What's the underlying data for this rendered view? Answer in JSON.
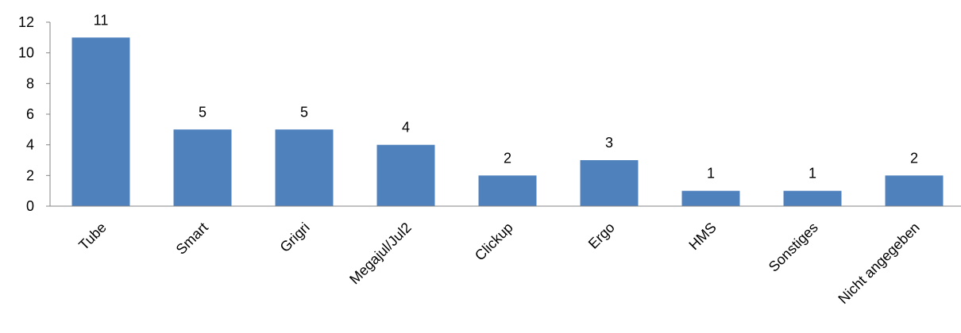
{
  "chart_data": {
    "type": "bar",
    "title": "",
    "xlabel": "",
    "ylabel": "",
    "categories": [
      "Tube",
      "Smart",
      "Grigri",
      "Megajul/Jul2",
      "Clickup",
      "Ergo",
      "HMS",
      "Sonstiges",
      "Nicht angegeben"
    ],
    "values": [
      11,
      5,
      5,
      4,
      2,
      3,
      1,
      1,
      2
    ],
    "ylim": [
      0,
      12
    ],
    "yticks": [
      0,
      2,
      4,
      6,
      8,
      10,
      12
    ],
    "grid": false,
    "legend": "none",
    "bar_color": "#4F81BD",
    "data_labels": true
  }
}
